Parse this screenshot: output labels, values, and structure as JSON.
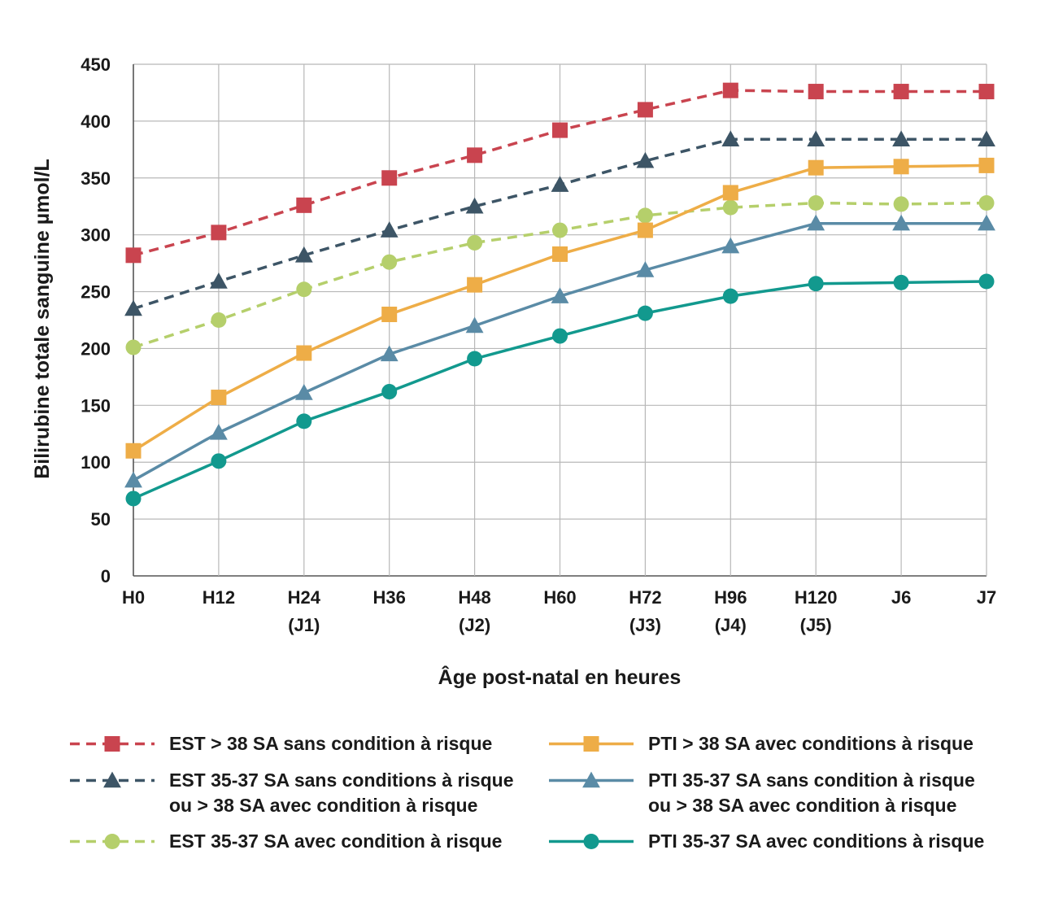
{
  "chart_data": {
    "type": "line",
    "title": "",
    "xlabel": "Âge post-natal en heures",
    "ylabel": "Bilirubine totale sanguine µmol/L",
    "ylim": [
      0,
      450
    ],
    "yticks": [
      0,
      50,
      100,
      150,
      200,
      250,
      300,
      350,
      400,
      450
    ],
    "grid": true,
    "legend_position": "bottom",
    "categories": [
      "H0",
      "H12",
      "H24",
      "H36",
      "H48",
      "H60",
      "H72",
      "H96",
      "H120",
      "J6",
      "J7"
    ],
    "category_sublabels": [
      "",
      "",
      "(J1)",
      "",
      "(J2)",
      "",
      "(J3)",
      "(J4)",
      "(J5)",
      "",
      ""
    ],
    "series": [
      {
        "name": "EST > 38 SA sans condition à risque",
        "color": "#c9444f",
        "dash": true,
        "marker": "square",
        "values": [
          282,
          302,
          326,
          350,
          370,
          392,
          410,
          427,
          426,
          426,
          426
        ]
      },
      {
        "name": "EST 35-37 SA sans conditions à risque\nou > 38 SA avec condition à risque",
        "color": "#3d5566",
        "dash": true,
        "marker": "triangle",
        "values": [
          235,
          259,
          282,
          304,
          325,
          344,
          365,
          384,
          384,
          384,
          384
        ]
      },
      {
        "name": "EST 35-37 SA avec condition à risque",
        "color": "#b5cf6b",
        "dash": true,
        "marker": "circle",
        "values": [
          201,
          225,
          252,
          276,
          293,
          304,
          317,
          324,
          328,
          327,
          328
        ]
      },
      {
        "name": "PTI > 38 SA avec conditions à risque",
        "color": "#eead47",
        "dash": false,
        "marker": "square",
        "values": [
          110,
          157,
          196,
          230,
          256,
          283,
          304,
          337,
          359,
          360,
          361
        ]
      },
      {
        "name": "PTI 35-37 SA sans condition à risque\nou > 38 SA avec condition à risque",
        "color": "#5a8ba6",
        "dash": false,
        "marker": "triangle",
        "values": [
          84,
          126,
          161,
          195,
          220,
          246,
          269,
          290,
          310,
          310,
          310
        ]
      },
      {
        "name": "PTI 35-37 SA avec conditions à risque",
        "color": "#12998e",
        "dash": false,
        "marker": "circle",
        "values": [
          68,
          101,
          136,
          162,
          191,
          211,
          231,
          246,
          257,
          258,
          259
        ]
      }
    ]
  }
}
